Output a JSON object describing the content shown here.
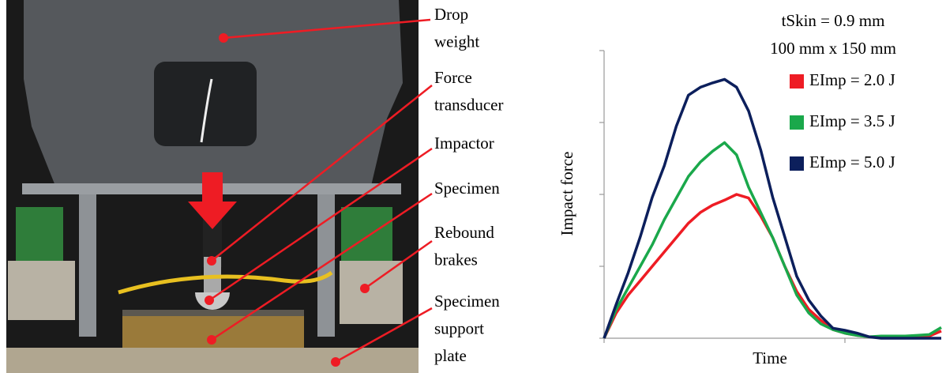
{
  "photo_labels": [
    {
      "lines": [
        "Drop",
        "weight"
      ]
    },
    {
      "lines": [
        "Force",
        "transducer"
      ]
    },
    {
      "lines": [
        "Impactor"
      ]
    },
    {
      "lines": [
        "Specimen"
      ]
    },
    {
      "lines": [
        "Rebound",
        "brakes"
      ]
    },
    {
      "lines": [
        "Specimen",
        "support",
        "plate"
      ]
    }
  ],
  "chart_data": {
    "type": "line",
    "annotations": [
      "tSkin = 0.9 mm",
      "100 mm x 150 mm"
    ],
    "ylabel": "Impact force",
    "xlabel": "Time",
    "xlim": [
      0,
      1.4
    ],
    "xticks": [
      0,
      1
    ],
    "ylim": [
      0,
      4
    ],
    "yticks": [
      0,
      1,
      2,
      3,
      4
    ],
    "x": [
      0,
      0.05,
      0.1,
      0.15,
      0.2,
      0.25,
      0.3,
      0.35,
      0.4,
      0.45,
      0.5,
      0.55,
      0.6,
      0.65,
      0.7,
      0.75,
      0.8,
      0.85,
      0.9,
      0.95,
      1.0,
      1.05,
      1.1,
      1.15,
      1.2,
      1.25,
      1.3,
      1.35,
      1.4
    ],
    "series": [
      {
        "name": "EImp = 2.0 J",
        "color": "#ee1c24",
        "values": [
          0,
          0.35,
          0.6,
          0.8,
          1.0,
          1.2,
          1.4,
          1.6,
          1.75,
          1.85,
          1.92,
          2.0,
          1.95,
          1.7,
          1.4,
          1.0,
          0.65,
          0.4,
          0.25,
          0.12,
          0.07,
          0.04,
          0.02,
          0.02,
          0.03,
          0.02,
          0.02,
          0.03,
          0.1
        ]
      },
      {
        "name": "EImp = 3.5 J",
        "color": "#1aa84b",
        "values": [
          0,
          0.4,
          0.7,
          1.0,
          1.3,
          1.65,
          1.95,
          2.25,
          2.45,
          2.6,
          2.72,
          2.55,
          2.1,
          1.75,
          1.4,
          1.0,
          0.6,
          0.35,
          0.2,
          0.12,
          0.07,
          0.04,
          0.02,
          0.03,
          0.03,
          0.03,
          0.04,
          0.05,
          0.15
        ]
      },
      {
        "name": "EImp = 5.0 J",
        "color": "#0c1f5c",
        "values": [
          0,
          0.47,
          0.91,
          1.41,
          1.96,
          2.4,
          2.95,
          3.38,
          3.49,
          3.55,
          3.6,
          3.49,
          3.16,
          2.62,
          1.96,
          1.41,
          0.86,
          0.53,
          0.31,
          0.14,
          0.11,
          0.07,
          0.02,
          0,
          0,
          0,
          0,
          0,
          0
        ]
      }
    ]
  }
}
